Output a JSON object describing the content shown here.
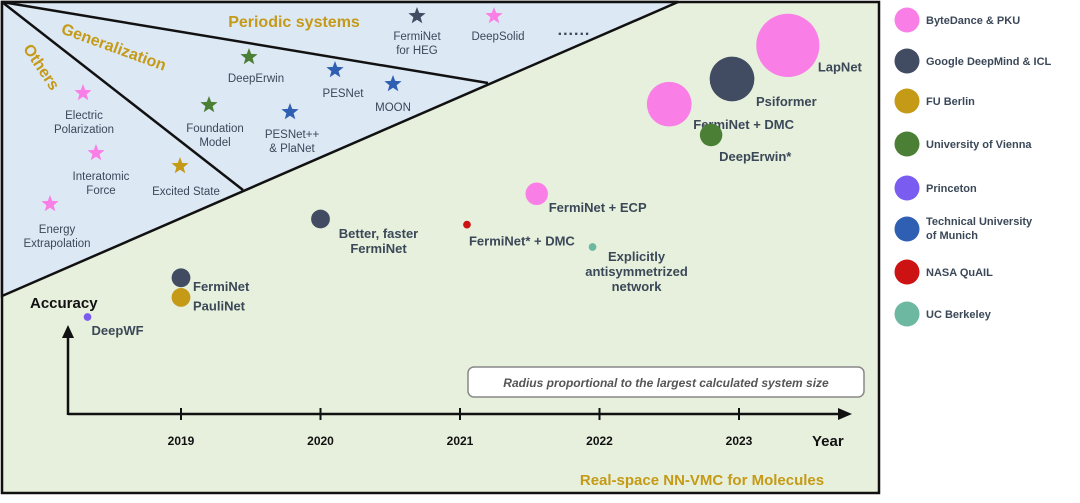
{
  "colors": {
    "bytedance": "#f97fe6",
    "deepmind": "#414b62",
    "fuberlin": "#c49a17",
    "vienna": "#4b7f35",
    "princeton": "#7a5cf0",
    "tum": "#2f5fb3",
    "nasa": "#cc1212",
    "berkeley": "#6db8a0",
    "panel_green": "#e7f0dc",
    "panel_blue": "#dde8f5",
    "label_dark": "#3b4858",
    "label_gold": "#c49a17"
  },
  "legend": [
    {
      "label": "ByteDance & PKU",
      "color_key": "bytedance"
    },
    {
      "label": "Google DeepMind & ICL",
      "color_key": "deepmind"
    },
    {
      "label": "FU Berlin",
      "color_key": "fuberlin"
    },
    {
      "label": "University of Vienna",
      "color_key": "vienna"
    },
    {
      "label": "Princeton",
      "color_key": "princeton"
    },
    {
      "label": "Technical University of Munich",
      "color_key": "tum"
    },
    {
      "label": "NASA QuAIL",
      "color_key": "nasa"
    },
    {
      "label": "UC Berkeley",
      "color_key": "berkeley"
    }
  ],
  "axis": {
    "y_label": "Accuracy",
    "x_label": "Year",
    "years": [
      "2019",
      "2020",
      "2021",
      "2022",
      "2023"
    ]
  },
  "main_title": "Real-space NN-VMC for Molecules",
  "note": "Radius proportional to the largest calculated system size",
  "regions": {
    "periodic": "Periodic systems",
    "generalization": "Generalization",
    "others": "Others",
    "ellipsis": "......"
  },
  "methods": [
    {
      "lines": [
        "DeepWF"
      ],
      "color_key": "princeton",
      "year": 2018.33,
      "accuracy": 1.0,
      "relative_size": 1
    },
    {
      "lines": [
        "FermiNet"
      ],
      "color_key": "deepmind",
      "year": 2019.0,
      "accuracy": 2.4,
      "relative_size": 4
    },
    {
      "lines": [
        "PauliNet"
      ],
      "color_key": "fuberlin",
      "year": 2019.0,
      "accuracy": 1.7,
      "relative_size": 4
    },
    {
      "lines": [
        "Better, faster",
        "FermiNet"
      ],
      "color_key": "deepmind",
      "year": 2020.0,
      "accuracy": 4.5,
      "relative_size": 4
    },
    {
      "lines": [
        "FermiNet* + DMC"
      ],
      "color_key": "nasa",
      "year": 2021.05,
      "accuracy": 4.3,
      "relative_size": 1
    },
    {
      "lines": [
        "FermiNet + ECP"
      ],
      "color_key": "bytedance",
      "year": 2021.55,
      "accuracy": 5.4,
      "relative_size": 5
    },
    {
      "lines": [
        "Explicitly",
        "antisymmetrized",
        "network"
      ],
      "color_key": "berkeley",
      "year": 2021.95,
      "accuracy": 3.5,
      "relative_size": 1
    },
    {
      "lines": [
        "FermiNet + DMC"
      ],
      "color_key": "bytedance",
      "year": 2022.5,
      "accuracy": 8.6,
      "relative_size": 11
    },
    {
      "lines": [
        "Psiformer"
      ],
      "color_key": "deepmind",
      "year": 2022.95,
      "accuracy": 9.5,
      "relative_size": 11
    },
    {
      "lines": [
        "DeepErwin*"
      ],
      "color_key": "vienna",
      "year": 2022.8,
      "accuracy": 7.5,
      "relative_size": 5
    },
    {
      "lines": [
        "LapNet"
      ],
      "color_key": "bytedance",
      "year": 2023.35,
      "accuracy": 10.7,
      "relative_size": 16
    }
  ],
  "star_items": [
    {
      "lines": [
        "FermiNet",
        "for HEG"
      ],
      "color_key": "deepmind",
      "group": "periodic"
    },
    {
      "lines": [
        "DeepSolid"
      ],
      "color_key": "bytedance",
      "group": "periodic"
    },
    {
      "lines": [
        "DeepErwin"
      ],
      "color_key": "vienna",
      "group": "generalization"
    },
    {
      "lines": [
        "PESNet"
      ],
      "color_key": "tum",
      "group": "generalization"
    },
    {
      "lines": [
        "MOON"
      ],
      "color_key": "tum",
      "group": "generalization"
    },
    {
      "lines": [
        "Foundation",
        "Model"
      ],
      "color_key": "vienna",
      "group": "generalization"
    },
    {
      "lines": [
        "PESNet++",
        "& PlaNet"
      ],
      "color_key": "tum",
      "group": "generalization"
    },
    {
      "lines": [
        "Electric",
        "Polarization"
      ],
      "color_key": "bytedance",
      "group": "others"
    },
    {
      "lines": [
        "Interatomic",
        "Force"
      ],
      "color_key": "bytedance",
      "group": "others"
    },
    {
      "lines": [
        "Excited State"
      ],
      "color_key": "fuberlin",
      "group": "others"
    },
    {
      "lines": [
        "Energy",
        "Extrapolation"
      ],
      "color_key": "bytedance",
      "group": "others"
    }
  ]
}
